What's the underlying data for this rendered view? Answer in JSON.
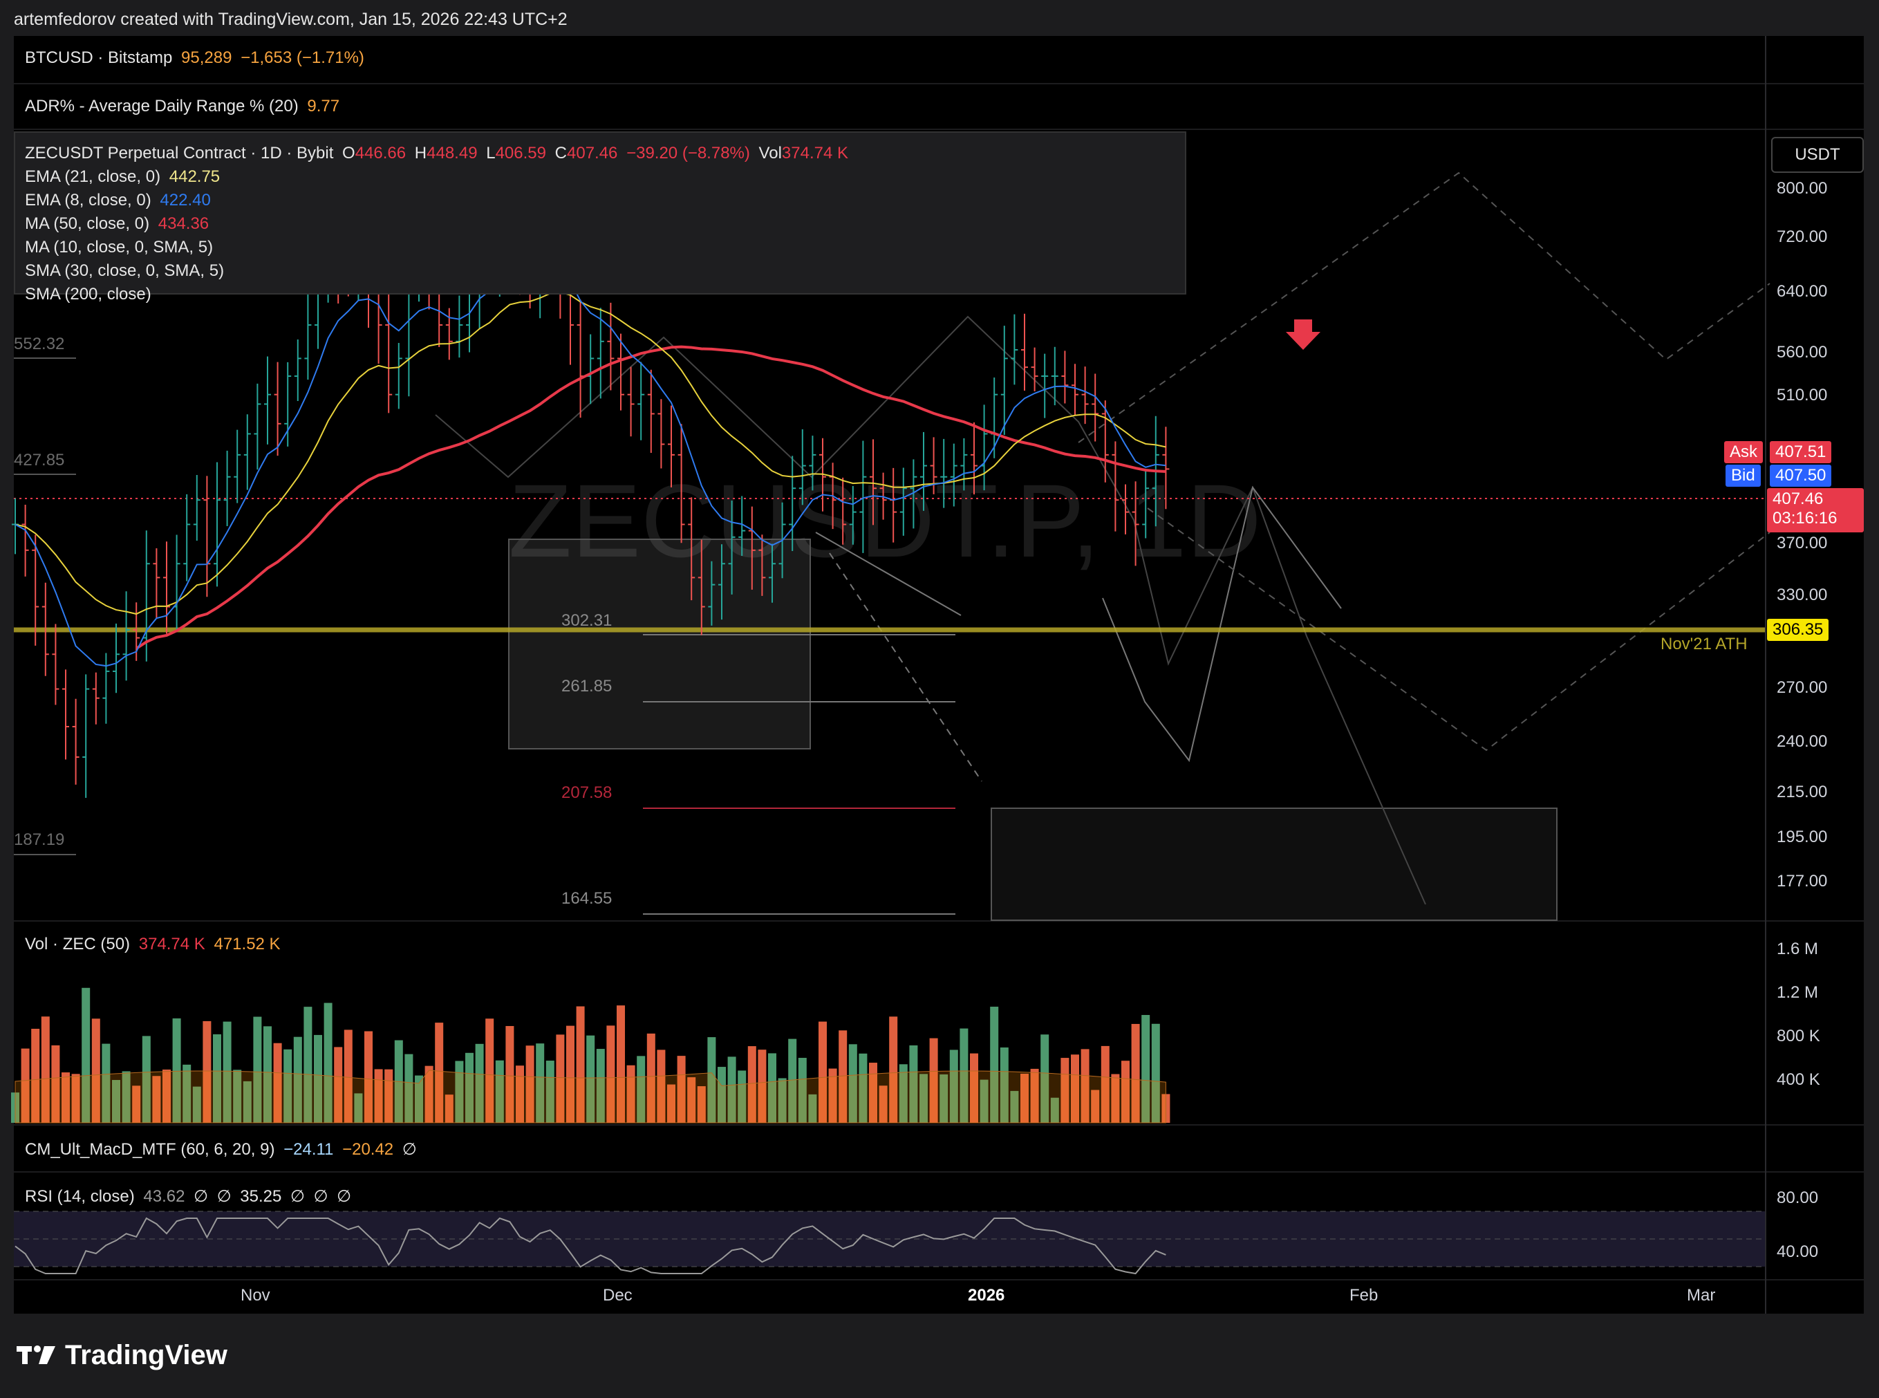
{
  "header": "artemfedorov created with TradingView.com, Jan 15, 2026 22:43 UTC+2",
  "pane_btc": {
    "symbol": "BTCUSD · Bitstamp",
    "price": "95,289",
    "change": "−1,653 (−1.71%)"
  },
  "pane_adr": {
    "label": "ADR% - Average Daily Range % (20)",
    "value": "9.77"
  },
  "main_legend": {
    "symbol": "ZECUSDT Perpetual Contract · 1D · Bybit",
    "o_label": "O",
    "o": "446.66",
    "h_label": "H",
    "h": "448.49",
    "l_label": "L",
    "l": "406.59",
    "c_label": "C",
    "c": "407.46",
    "chg": "−39.20 (−8.78%)",
    "vol_label": "Vol",
    "vol": "374.74 K",
    "ema21": {
      "label": "EMA (21, close, 0)",
      "value": "442.75",
      "color": "#f0e68c"
    },
    "ema8": {
      "label": "EMA (8, close, 0)",
      "value": "422.40",
      "color": "#2f7bf0"
    },
    "ma50": {
      "label": "MA (50, close, 0)",
      "value": "434.36",
      "color": "#e8394a"
    },
    "ma10": {
      "label": "MA (10, close, 0, SMA, 5)"
    },
    "sma30": {
      "label": "SMA (30, close, 0, SMA, 5)"
    },
    "sma200": {
      "label": "SMA (200, close)"
    }
  },
  "currency": "USDT",
  "price_axis": [
    "800.00",
    "720.00",
    "640.00",
    "560.00",
    "510.00",
    "370.00",
    "330.00",
    "270.00",
    "240.00",
    "215.00",
    "195.00",
    "177.00"
  ],
  "ask": {
    "label": "Ask",
    "value": "407.51",
    "color": "#e8394a"
  },
  "bid": {
    "label": "Bid",
    "value": "407.50",
    "color": "#2962ff"
  },
  "last": {
    "value": "407.46",
    "countdown": "03:16:16",
    "color": "#e8394a"
  },
  "ath": {
    "value": "306.35",
    "label": "Nov'21 ATH",
    "color": "#b5a629"
  },
  "levels": [
    "552.32",
    "427.85",
    "187.19",
    "302.31",
    "261.85",
    "207.58",
    "164.55"
  ],
  "watermark": "ZECUSDT.P, 1D",
  "vol_pane": {
    "label": "Vol · ZEC (50)",
    "v1": "374.74 K",
    "v2": "471.52 K",
    "axis": [
      "1.6 M",
      "1.2 M",
      "800 K",
      "400 K"
    ]
  },
  "macd_pane": {
    "label": "CM_Ult_MacD_MTF (60, 6, 20, 9)",
    "v1": "−24.11",
    "v2": "−20.42",
    "v3": "∅"
  },
  "rsi_pane": {
    "label": "RSI (14, close)",
    "v1": "43.62",
    "n1": "∅",
    "n2": "∅",
    "v2": "35.25",
    "n3": "∅",
    "n4": "∅",
    "n5": "∅",
    "axis": [
      "80.00",
      "40.00"
    ]
  },
  "time_axis": [
    "Nov",
    "Dec",
    "2026",
    "Feb",
    "Mar"
  ],
  "brand": "TradingView",
  "chart_data": {
    "type": "candlestick",
    "symbol": "ZECUSDT.P",
    "ylim": [
      150,
      860
    ],
    "last_close": 407.46,
    "ohlc_last": {
      "open": 446.66,
      "high": 448.49,
      "low": 406.59,
      "close": 407.46
    },
    "closes": [
      360,
      340,
      300,
      270,
      250,
      230,
      215,
      250,
      245,
      260,
      270,
      285,
      280,
      330,
      320,
      300,
      330,
      360,
      380,
      330,
      380,
      400,
      420,
      440,
      470,
      480,
      450,
      500,
      520,
      560,
      610,
      660,
      640,
      620,
      640,
      600,
      560,
      480,
      520,
      610,
      620,
      600,
      560,
      540,
      560,
      600,
      660,
      640,
      700,
      690,
      620,
      600,
      640,
      660,
      620,
      560,
      500,
      520,
      540,
      520,
      480,
      470,
      480,
      460,
      430,
      420,
      360,
      320,
      300,
      315,
      330,
      350,
      355,
      340,
      320,
      330,
      360,
      390,
      410,
      420,
      400,
      380,
      360,
      370,
      400,
      390,
      380,
      370,
      390,
      400,
      410,
      400,
      400,
      410,
      420,
      410,
      440,
      480,
      520,
      530,
      510,
      500,
      500,
      500,
      490,
      480,
      470,
      460,
      420,
      380,
      370,
      360,
      390,
      420,
      407
    ]
  }
}
